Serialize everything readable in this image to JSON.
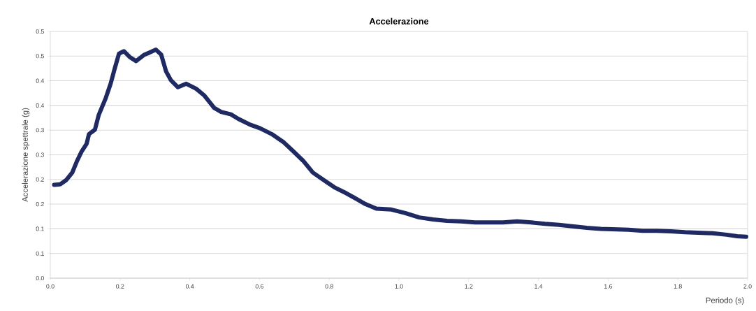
{
  "chart_data": {
    "type": "line",
    "title": "Accelerazione",
    "xlabel": "Periodo (s)",
    "ylabel": "Accelerazione spettrale (g)",
    "x": [
      0.011,
      0.028,
      0.046,
      0.063,
      0.077,
      0.09,
      0.104,
      0.111,
      0.128,
      0.139,
      0.159,
      0.173,
      0.184,
      0.197,
      0.211,
      0.228,
      0.246,
      0.27,
      0.284,
      0.303,
      0.318,
      0.332,
      0.346,
      0.366,
      0.39,
      0.418,
      0.442,
      0.47,
      0.49,
      0.518,
      0.539,
      0.573,
      0.601,
      0.635,
      0.67,
      0.697,
      0.725,
      0.753,
      0.794,
      0.815,
      0.849,
      0.877,
      0.904,
      0.935,
      0.978,
      1.018,
      1.058,
      1.098,
      1.138,
      1.178,
      1.218,
      1.259,
      1.299,
      1.339,
      1.379,
      1.419,
      1.459,
      1.499,
      1.539,
      1.579,
      1.619,
      1.659,
      1.699,
      1.739,
      1.78,
      1.82,
      1.86,
      1.9,
      1.94,
      1.97,
      1.996
    ],
    "series": [
      {
        "color": "#1f2a63",
        "values": [
          0.189,
          0.19,
          0.199,
          0.214,
          0.238,
          0.257,
          0.272,
          0.292,
          0.301,
          0.331,
          0.365,
          0.394,
          0.423,
          0.455,
          0.46,
          0.448,
          0.44,
          0.453,
          0.457,
          0.463,
          0.453,
          0.419,
          0.401,
          0.387,
          0.394,
          0.384,
          0.37,
          0.345,
          0.337,
          0.332,
          0.323,
          0.311,
          0.304,
          0.292,
          0.275,
          0.257,
          0.238,
          0.214,
          0.194,
          0.184,
          0.172,
          0.161,
          0.15,
          0.141,
          0.139,
          0.132,
          0.123,
          0.119,
          0.116,
          0.115,
          0.113,
          0.113,
          0.113,
          0.115,
          0.113,
          0.11,
          0.108,
          0.105,
          0.102,
          0.1,
          0.099,
          0.098,
          0.096,
          0.096,
          0.095,
          0.093,
          0.092,
          0.091,
          0.088,
          0.085,
          0.084
        ]
      }
    ],
    "xlim": [
      0,
      2
    ],
    "ylim": [
      0,
      0.5
    ],
    "xticks": [
      {
        "value": 0,
        "label": "0.0"
      },
      {
        "value": 0.2,
        "label": "0.2"
      },
      {
        "value": 0.4,
        "label": "0.4"
      },
      {
        "value": 0.6,
        "label": "0.6"
      },
      {
        "value": 0.8,
        "label": "0.8"
      },
      {
        "value": 1,
        "label": "1.0"
      },
      {
        "value": 1.2,
        "label": "1.2"
      },
      {
        "value": 1.4,
        "label": "1.4"
      },
      {
        "value": 1.6,
        "label": "1.6"
      },
      {
        "value": 1.8,
        "label": "1.8"
      },
      {
        "value": 2,
        "label": "2.0"
      }
    ],
    "yticks": [
      {
        "value": 0,
        "label": "0.0"
      },
      {
        "value": 0.05,
        "label": "0.1"
      },
      {
        "value": 0.1,
        "label": "0.1"
      },
      {
        "value": 0.15,
        "label": "0.2"
      },
      {
        "value": 0.2,
        "label": "0.2"
      },
      {
        "value": 0.25,
        "label": "0.3"
      },
      {
        "value": 0.3,
        "label": "0.3"
      },
      {
        "value": 0.35,
        "label": "0.4"
      },
      {
        "value": 0.4,
        "label": "0.4"
      },
      {
        "value": 0.45,
        "label": "0.5"
      },
      {
        "value": 0.5,
        "label": "0.5"
      }
    ],
    "grid": "y",
    "marker": "none",
    "line_style": "solid"
  }
}
